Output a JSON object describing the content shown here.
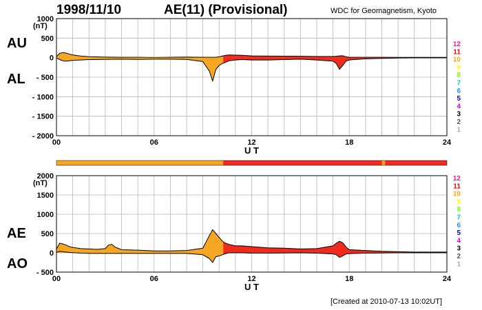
{
  "header": {
    "date": "1998/11/10",
    "title": "AE(11) (Provisional)",
    "source": "WDC for Geomagnetism, Kyoto",
    "created": "[Created at 2010-07-13 10:02UT]"
  },
  "labels": {
    "au": "AU",
    "al": "AL",
    "ae": "AE",
    "ao": "AO",
    "unit": "(nT)",
    "xlabel": "U T"
  },
  "colors": {
    "orange": "#F5A623",
    "red": "#EE2B1C",
    "line": "#000000",
    "grid": "#b4b4b4"
  },
  "level_scale": [
    {
      "label": "12",
      "color": "#FF1493"
    },
    {
      "label": "11",
      "color": "#FF0000"
    },
    {
      "label": "10",
      "color": "#FFA500"
    },
    {
      "label": "9",
      "color": "#FFFF00"
    },
    {
      "label": "8",
      "color": "#7CFC00"
    },
    {
      "label": "7",
      "color": "#00CED1"
    },
    {
      "label": "6",
      "color": "#1E90FF"
    },
    {
      "label": "5",
      "color": "#0000CD"
    },
    {
      "label": "4",
      "color": "#DD00DD"
    },
    {
      "label": "3",
      "color": "#000000"
    },
    {
      "label": "2",
      "color": "#555555"
    },
    {
      "label": "1",
      "color": "#AAAAAA"
    }
  ],
  "station_bar": {
    "x_range": [
      0,
      24
    ],
    "segments": [
      [
        0,
        10.25,
        "#F5A623"
      ],
      [
        10.25,
        20,
        "#EE2B1C"
      ],
      [
        20,
        20.2,
        "#F5A623"
      ],
      [
        20.2,
        24,
        "#EE2B1C"
      ]
    ]
  },
  "chart_data": [
    {
      "type": "area",
      "series": [
        {
          "name": "AU",
          "x": [
            0,
            0.2,
            0.4,
            0.6,
            0.8,
            1,
            1.5,
            2,
            3,
            4,
            5,
            6,
            7,
            8,
            9,
            9.4,
            9.6,
            9.8,
            10,
            10.2,
            10.4,
            10.6,
            11,
            11.4,
            12,
            13,
            14,
            15,
            16,
            17,
            17.2,
            17.4,
            17.6,
            17.8,
            18,
            19,
            20,
            21,
            22,
            23,
            24
          ],
          "y": [
            30,
            110,
            130,
            115,
            90,
            70,
            40,
            25,
            15,
            10,
            10,
            5,
            10,
            15,
            10,
            10,
            10,
            10,
            20,
            40,
            60,
            70,
            65,
            60,
            45,
            40,
            38,
            35,
            30,
            30,
            35,
            45,
            50,
            20,
            10,
            10,
            10,
            8,
            8,
            8,
            8
          ]
        },
        {
          "name": "AL",
          "x": [
            0,
            0.2,
            0.4,
            0.6,
            0.8,
            1,
            1.5,
            2,
            3,
            4,
            5,
            6,
            7,
            8,
            9,
            9.4,
            9.6,
            9.8,
            10,
            10.2,
            10.4,
            10.6,
            11,
            11.4,
            12,
            13,
            14,
            15,
            16,
            17,
            17.2,
            17.4,
            17.6,
            17.8,
            18,
            19,
            20,
            21,
            22,
            23,
            24
          ],
          "y": [
            -10,
            -50,
            -80,
            -90,
            -80,
            -70,
            -60,
            -50,
            -45,
            -40,
            -45,
            -40,
            -40,
            -45,
            -100,
            -350,
            -600,
            -300,
            -200,
            -150,
            -120,
            -80,
            -60,
            -50,
            -60,
            -60,
            -50,
            -40,
            -60,
            -90,
            -150,
            -300,
            -200,
            -90,
            -60,
            -30,
            -20,
            -10,
            -5,
            -5,
            -5
          ]
        }
      ],
      "xlim": [
        0,
        24
      ],
      "ylim": [
        -2000,
        1000
      ],
      "xticks": [
        "00",
        "06",
        "12",
        "18",
        "24"
      ],
      "yticks": [
        "1000",
        "500",
        "0",
        "- 500",
        "- 1000",
        "- 1500",
        "- 2000"
      ],
      "xlabel": "U T",
      "ylabel": "(nT)",
      "grid": true
    },
    {
      "type": "area",
      "series": [
        {
          "name": "AE",
          "x": [
            0,
            0.2,
            0.4,
            0.6,
            0.8,
            1,
            1.5,
            2,
            2.5,
            3,
            3.2,
            3.4,
            3.6,
            4,
            5,
            6,
            7,
            8,
            9,
            9.4,
            9.6,
            9.8,
            10,
            10.2,
            10.4,
            10.6,
            11,
            11.4,
            12,
            13,
            14,
            15,
            16,
            17,
            17.2,
            17.4,
            17.6,
            17.8,
            18,
            19,
            20,
            21,
            22,
            23,
            24
          ],
          "y": [
            100,
            250,
            230,
            200,
            160,
            140,
            110,
            100,
            90,
            110,
            200,
            220,
            150,
            80,
            70,
            50,
            50,
            60,
            120,
            450,
            600,
            500,
            400,
            300,
            250,
            220,
            180,
            180,
            160,
            130,
            120,
            100,
            110,
            180,
            250,
            300,
            260,
            150,
            80,
            60,
            40,
            30,
            20,
            20,
            20
          ]
        },
        {
          "name": "AO",
          "x": [
            0,
            0.2,
            0.4,
            0.6,
            0.8,
            1,
            1.5,
            2,
            3,
            4,
            5,
            6,
            7,
            8,
            9,
            9.4,
            9.6,
            9.8,
            10,
            10.2,
            10.4,
            10.6,
            11,
            11.4,
            12,
            13,
            14,
            15,
            16,
            17,
            17.2,
            17.4,
            17.6,
            17.8,
            18,
            19,
            20,
            21,
            22,
            23,
            24
          ],
          "y": [
            10,
            40,
            30,
            20,
            10,
            5,
            -10,
            -15,
            -15,
            -15,
            -15,
            -15,
            -15,
            -15,
            -50,
            -150,
            -250,
            -100,
            -80,
            -50,
            -20,
            0,
            0,
            0,
            -10,
            -10,
            -5,
            0,
            -10,
            -30,
            -50,
            -120,
            -80,
            -30,
            -20,
            -10,
            -5,
            0,
            0,
            0,
            0
          ]
        }
      ],
      "xlim": [
        0,
        24
      ],
      "ylim": [
        -500,
        2000
      ],
      "xticks": [
        "00",
        "06",
        "12",
        "18",
        "24"
      ],
      "yticks": [
        "2000",
        "1500",
        "1000",
        "500",
        "0",
        "- 500"
      ],
      "xlabel": "U T",
      "ylabel": "(nT)",
      "grid": true
    }
  ]
}
